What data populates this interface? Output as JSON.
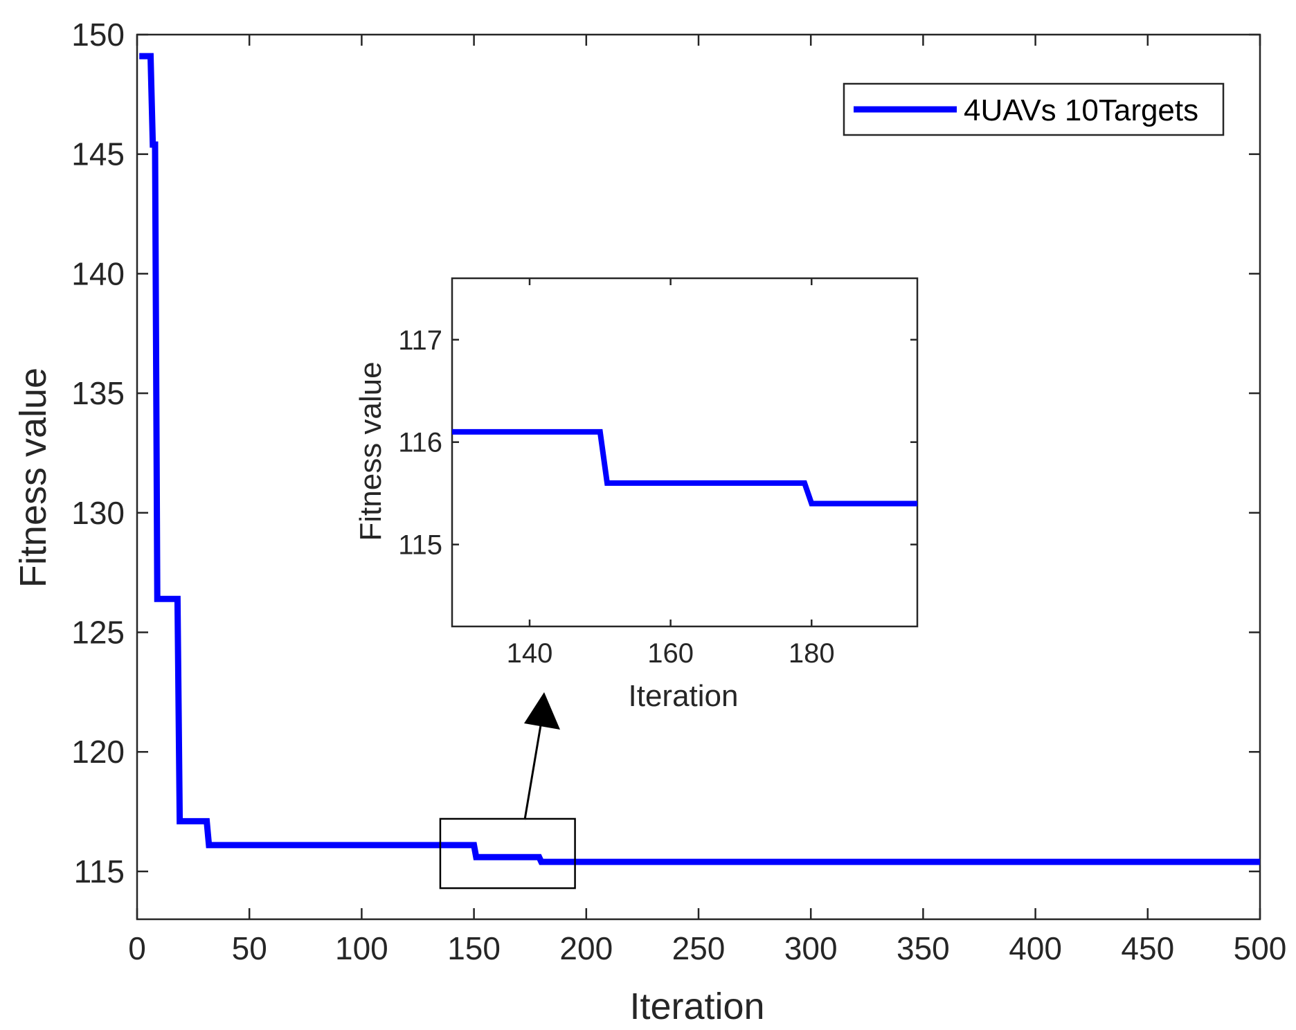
{
  "chart_data": [
    {
      "type": "line",
      "xlabel": "Iteration",
      "ylabel": "Fitness value",
      "xlim": [
        0,
        500
      ],
      "ylim": [
        113,
        150
      ],
      "xticks": [
        0,
        50,
        100,
        150,
        200,
        250,
        300,
        350,
        400,
        450,
        500
      ],
      "yticks": [
        115,
        120,
        125,
        130,
        135,
        140,
        145,
        150
      ],
      "grid": false,
      "legend": {
        "position": "top-right",
        "entries": [
          "4UAVs 10Targets"
        ]
      },
      "series": [
        {
          "name": "4UAVs 10Targets",
          "color": "#0000ff",
          "x": [
            1,
            6,
            7,
            8,
            9,
            10,
            18,
            19,
            31,
            32,
            150,
            151,
            179,
            180,
            500
          ],
          "y": [
            149.1,
            149.1,
            145.4,
            145.4,
            126.4,
            126.4,
            126.4,
            117.1,
            117.1,
            116.1,
            116.1,
            115.6,
            115.6,
            115.4,
            115.4
          ]
        }
      ],
      "zoom_box": {
        "x_range": [
          135,
          195
        ],
        "y_range": [
          114.3,
          117.2
        ]
      }
    },
    {
      "type": "line",
      "xlabel": "Iteration",
      "ylabel": "Fitness value",
      "xlim": [
        129,
        195
      ],
      "ylim": [
        114.2,
        117.6
      ],
      "xticks": [
        140,
        160,
        180
      ],
      "yticks": [
        115,
        116,
        117
      ],
      "grid": false,
      "series": [
        {
          "color": "#0000ff",
          "x": [
            129,
            150,
            151,
            179,
            180,
            195
          ],
          "y": [
            116.1,
            116.1,
            115.6,
            115.6,
            115.4,
            115.4
          ]
        }
      ]
    }
  ]
}
